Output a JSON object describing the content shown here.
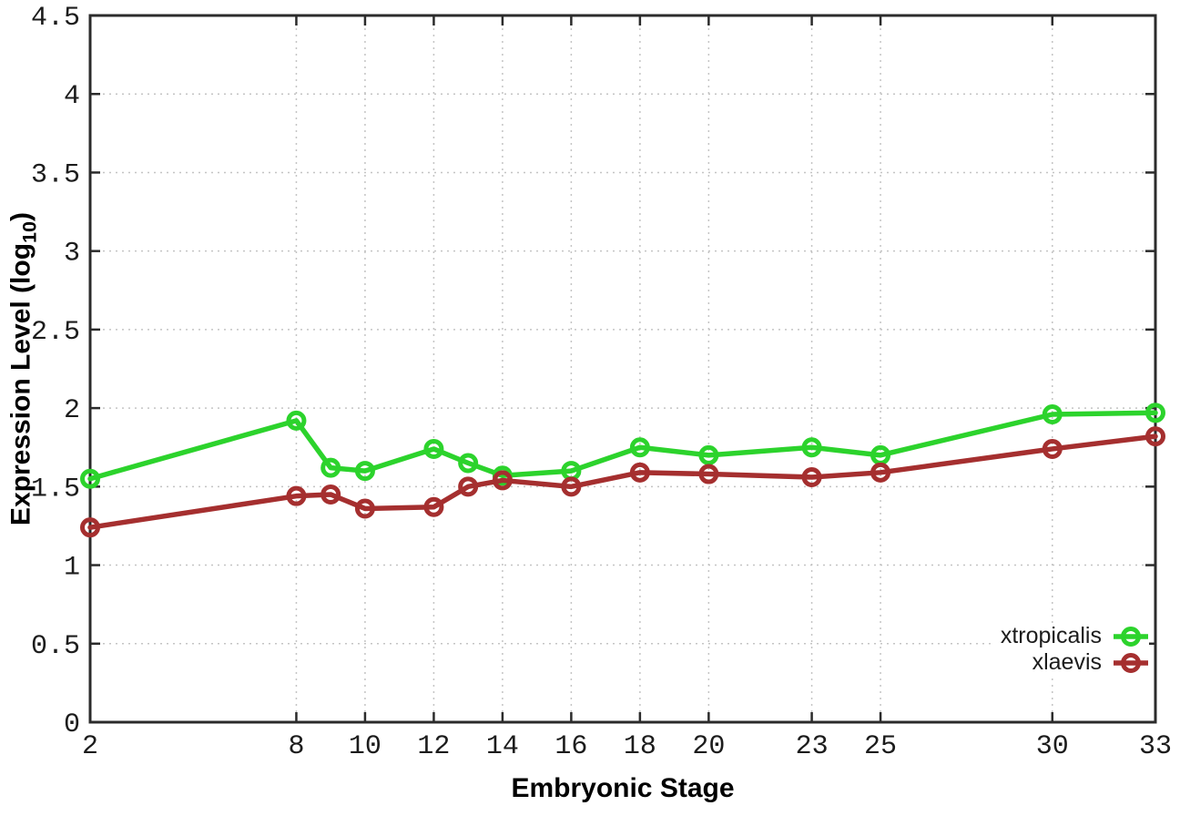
{
  "figure": {
    "background": "#ffffff"
  },
  "chart_data": {
    "type": "line",
    "title": "",
    "xlabel": "Embryonic Stage",
    "ylabel": "Expression Level (log10)",
    "ylabel_rich": {
      "pre": "Expression Level (log",
      "sub": "10",
      "post": ")"
    },
    "x": [
      2,
      8,
      9,
      10,
      12,
      13,
      14,
      16,
      18,
      20,
      23,
      25,
      30,
      33
    ],
    "series": [
      {
        "name": "xtropicalis",
        "color": "#2cd32c",
        "marker": "open-circle",
        "values": [
          1.55,
          1.92,
          1.62,
          1.6,
          1.74,
          1.65,
          1.57,
          1.6,
          1.75,
          1.7,
          1.75,
          1.7,
          1.96,
          1.97
        ]
      },
      {
        "name": "xlaevis",
        "color": "#a52f2f",
        "marker": "open-circle",
        "values": [
          1.24,
          1.44,
          1.45,
          1.36,
          1.37,
          1.5,
          1.54,
          1.5,
          1.59,
          1.58,
          1.56,
          1.59,
          1.74,
          1.82
        ]
      }
    ],
    "xlim": [
      2,
      33
    ],
    "ylim": [
      0,
      4.5
    ],
    "x_tick_labels": [
      "2",
      "8",
      "10",
      "12",
      "14",
      "16",
      "18",
      "20",
      "23",
      "25",
      "30",
      "33"
    ],
    "x_tick_values": [
      2,
      8,
      10,
      12,
      14,
      16,
      18,
      20,
      23,
      25,
      30,
      33
    ],
    "y_tick_labels": [
      "0",
      "0.5",
      "1",
      "1.5",
      "2",
      "2.5",
      "3",
      "3.5",
      "4",
      "4.5"
    ],
    "y_tick_values": [
      0,
      0.5,
      1,
      1.5,
      2,
      2.5,
      3,
      3.5,
      4,
      4.5
    ],
    "grid": "dotted",
    "legend_position": "bottom-right"
  },
  "colors": {
    "grid": "#c4c4c4",
    "border": "#2b2b2b",
    "tick_text": "#1c1c1c"
  }
}
